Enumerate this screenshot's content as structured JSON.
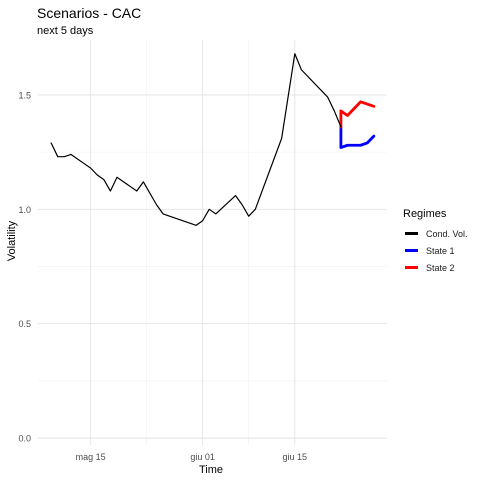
{
  "chart_data": {
    "type": "line",
    "title": "Scenarios - CAC",
    "subtitle": "next 5 days",
    "xlabel": "Time",
    "ylabel": "Volatility",
    "x_ticks": [
      {
        "date": "2022-05-15",
        "label": "mag 15"
      },
      {
        "date": "2022-06-01",
        "label": "giu 01"
      },
      {
        "date": "2022-06-15",
        "label": "giu 15"
      }
    ],
    "xlim": [
      "2022-05-07",
      "2022-06-29"
    ],
    "y_ticks": [
      0.0,
      0.5,
      1.0,
      1.5
    ],
    "y_tick_labels": [
      "0.0",
      "0.5",
      "1.0",
      "1.5"
    ],
    "ylim": [
      -0.03,
      1.74
    ],
    "grid": true,
    "legend": {
      "title": "Regimes",
      "position": "right"
    },
    "series": [
      {
        "name": "Cond. Vol.",
        "color": "#000000",
        "points": [
          {
            "x": "2022-05-09",
            "y": 1.29
          },
          {
            "x": "2022-05-10",
            "y": 1.23
          },
          {
            "x": "2022-05-11",
            "y": 1.23
          },
          {
            "x": "2022-05-12",
            "y": 1.24
          },
          {
            "x": "2022-05-13",
            "y": 1.22
          },
          {
            "x": "2022-05-14",
            "y": 1.2
          },
          {
            "x": "2022-05-15",
            "y": 1.18
          },
          {
            "x": "2022-05-16",
            "y": 1.15
          },
          {
            "x": "2022-05-17",
            "y": 1.13
          },
          {
            "x": "2022-05-18",
            "y": 1.08
          },
          {
            "x": "2022-05-19",
            "y": 1.14
          },
          {
            "x": "2022-05-20",
            "y": 1.12
          },
          {
            "x": "2022-05-21",
            "y": 1.1
          },
          {
            "x": "2022-05-22",
            "y": 1.08
          },
          {
            "x": "2022-05-23",
            "y": 1.12
          },
          {
            "x": "2022-05-24",
            "y": 1.07
          },
          {
            "x": "2022-05-25",
            "y": 1.02
          },
          {
            "x": "2022-05-26",
            "y": 0.98
          },
          {
            "x": "2022-05-31",
            "y": 0.93
          },
          {
            "x": "2022-06-01",
            "y": 0.95
          },
          {
            "x": "2022-06-02",
            "y": 1.0
          },
          {
            "x": "2022-06-03",
            "y": 0.98
          },
          {
            "x": "2022-06-06",
            "y": 1.06
          },
          {
            "x": "2022-06-07",
            "y": 1.02
          },
          {
            "x": "2022-06-08",
            "y": 0.97
          },
          {
            "x": "2022-06-09",
            "y": 1.0
          },
          {
            "x": "2022-06-13",
            "y": 1.31
          },
          {
            "x": "2022-06-15",
            "y": 1.68
          },
          {
            "x": "2022-06-16",
            "y": 1.61
          },
          {
            "x": "2022-06-20",
            "y": 1.49
          },
          {
            "x": "2022-06-21",
            "y": 1.43
          },
          {
            "x": "2022-06-22",
            "y": 1.36
          }
        ]
      },
      {
        "name": "State 1",
        "color": "#0000ff",
        "points": [
          {
            "x": "2022-06-22",
            "y": 1.36
          },
          {
            "x": "2022-06-22",
            "y": 1.27
          },
          {
            "x": "2022-06-23",
            "y": 1.28
          },
          {
            "x": "2022-06-24",
            "y": 1.28
          },
          {
            "x": "2022-06-25",
            "y": 1.28
          },
          {
            "x": "2022-06-26",
            "y": 1.29
          },
          {
            "x": "2022-06-27",
            "y": 1.32
          }
        ]
      },
      {
        "name": "State 2",
        "color": "#ff0000",
        "points": [
          {
            "x": "2022-06-22",
            "y": 1.36
          },
          {
            "x": "2022-06-22",
            "y": 1.43
          },
          {
            "x": "2022-06-23",
            "y": 1.41
          },
          {
            "x": "2022-06-24",
            "y": 1.44
          },
          {
            "x": "2022-06-25",
            "y": 1.47
          },
          {
            "x": "2022-06-26",
            "y": 1.46
          },
          {
            "x": "2022-06-27",
            "y": 1.45
          }
        ]
      }
    ]
  }
}
